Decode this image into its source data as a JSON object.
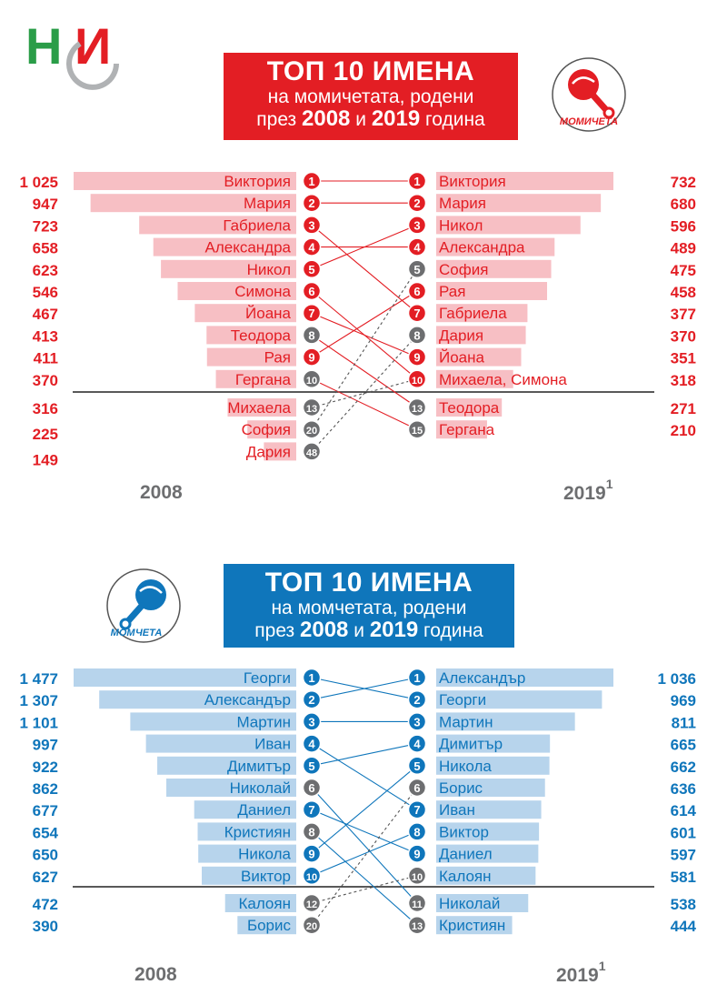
{
  "logo": {
    "text": "НСИ"
  },
  "girls": {
    "title_line1": "ТОП 10 ИМЕНА",
    "title_line2": "на момичетата, родени",
    "title_line3_a": "през ",
    "title_year_a": "2008",
    "title_line3_b": " и ",
    "title_year_b": "2019",
    "title_line3_c": " година",
    "badge": "МОМИЧЕТА",
    "year_left": "2008",
    "year_right": "2019",
    "year_right_sup": "1",
    "color": "#e31e24",
    "bar_color": "#f7bfc4",
    "left": [
      {
        "rank": "1",
        "name": "Виктория",
        "value": 1025,
        "value_label": "1 025",
        "target": 1
      },
      {
        "rank": "2",
        "name": "Мария",
        "value": 947,
        "value_label": "947",
        "target": 2
      },
      {
        "rank": "3",
        "name": "Габриела",
        "value": 723,
        "value_label": "723",
        "target": 7
      },
      {
        "rank": "4",
        "name": "Александра",
        "value": 658,
        "value_label": "658",
        "target": 4
      },
      {
        "rank": "5",
        "name": "Никол",
        "value": 623,
        "value_label": "623",
        "target": 3
      },
      {
        "rank": "6",
        "name": "Симона",
        "value": 546,
        "value_label": "546",
        "target": 10
      },
      {
        "rank": "7",
        "name": "Йоана",
        "value": 467,
        "value_label": "467",
        "target": 9
      },
      {
        "rank": "8",
        "name": "Теодора",
        "value": 413,
        "value_label": "413",
        "target": 11
      },
      {
        "rank": "9",
        "name": "Рая",
        "value": 411,
        "value_label": "411",
        "target": 6
      },
      {
        "rank": "10",
        "name": "Гергана",
        "value": 370,
        "value_label": "370",
        "target": 12
      },
      {
        "rank": "13",
        "name": "Михаела",
        "value": 316,
        "value_label": "316",
        "target": 10
      },
      {
        "rank": "20",
        "name": "София",
        "value": 225,
        "value_label": "225",
        "target": 5
      },
      {
        "rank": "48",
        "name": "Дария",
        "value": 149,
        "value_label": "149",
        "target": 8
      }
    ],
    "right": [
      {
        "rank": "1",
        "name": "Виктория",
        "value": 732,
        "value_label": "732"
      },
      {
        "rank": "2",
        "name": "Мария",
        "value": 680,
        "value_label": "680"
      },
      {
        "rank": "3",
        "name": "Никол",
        "value": 596,
        "value_label": "596"
      },
      {
        "rank": "4",
        "name": "Александра",
        "value": 489,
        "value_label": "489"
      },
      {
        "rank": "5",
        "name": "София",
        "value": 475,
        "value_label": "475"
      },
      {
        "rank": "6",
        "name": "Рая",
        "value": 458,
        "value_label": "458"
      },
      {
        "rank": "7",
        "name": "Габриела",
        "value": 377,
        "value_label": "377"
      },
      {
        "rank": "8",
        "name": "Дария",
        "value": 370,
        "value_label": "370"
      },
      {
        "rank": "9",
        "name": "Йоана",
        "value": 351,
        "value_label": "351"
      },
      {
        "rank": "10",
        "name": "Михаела, Симона",
        "value": 318,
        "value_label": "318"
      },
      {
        "rank": "13",
        "name": "Теодора",
        "value": 271,
        "value_label": "271"
      },
      {
        "rank": "15",
        "name": "Гергана",
        "value": 210,
        "value_label": "210"
      }
    ]
  },
  "boys": {
    "title_line1": "ТОП 10 ИМЕНА",
    "title_line2": "на момчетата, родени",
    "title_line3_a": "през ",
    "title_year_a": "2008",
    "title_line3_b": " и ",
    "title_year_b": "2019",
    "title_line3_c": " година",
    "badge": "МОМЧЕТА",
    "year_left": "2008",
    "year_right": "2019",
    "year_right_sup": "1",
    "color": "#0f76bb",
    "bar_color": "#b7d4ec",
    "left": [
      {
        "rank": "1",
        "name": "Георги",
        "value": 1477,
        "value_label": "1 477",
        "target": 2
      },
      {
        "rank": "2",
        "name": "Александър",
        "value": 1307,
        "value_label": "1 307",
        "target": 1
      },
      {
        "rank": "3",
        "name": "Мартин",
        "value": 1101,
        "value_label": "1 101",
        "target": 3
      },
      {
        "rank": "4",
        "name": "Иван",
        "value": 997,
        "value_label": "997",
        "target": 7
      },
      {
        "rank": "5",
        "name": "Димитър",
        "value": 922,
        "value_label": "922",
        "target": 4
      },
      {
        "rank": "6",
        "name": "Николай",
        "value": 862,
        "value_label": "862",
        "target": 11
      },
      {
        "rank": "7",
        "name": "Даниел",
        "value": 677,
        "value_label": "677",
        "target": 9
      },
      {
        "rank": "8",
        "name": "Кристиян",
        "value": 654,
        "value_label": "654",
        "target": 12
      },
      {
        "rank": "9",
        "name": "Никола",
        "value": 650,
        "value_label": "650",
        "target": 5
      },
      {
        "rank": "10",
        "name": "Виктор",
        "value": 627,
        "value_label": "627",
        "target": 8
      },
      {
        "rank": "12",
        "name": "Калоян",
        "value": 472,
        "value_label": "472",
        "target": 10
      },
      {
        "rank": "20",
        "name": "Борис",
        "value": 390,
        "value_label": "390",
        "target": 6
      }
    ],
    "right": [
      {
        "rank": "1",
        "name": "Александър",
        "value": 1036,
        "value_label": "1 036"
      },
      {
        "rank": "2",
        "name": "Георги",
        "value": 969,
        "value_label": "969"
      },
      {
        "rank": "3",
        "name": "Мартин",
        "value": 811,
        "value_label": "811"
      },
      {
        "rank": "4",
        "name": "Димитър",
        "value": 665,
        "value_label": "665"
      },
      {
        "rank": "5",
        "name": "Никола",
        "value": 662,
        "value_label": "662"
      },
      {
        "rank": "6",
        "name": "Борис",
        "value": 636,
        "value_label": "636"
      },
      {
        "rank": "7",
        "name": "Иван",
        "value": 614,
        "value_label": "614"
      },
      {
        "rank": "8",
        "name": "Виктор",
        "value": 601,
        "value_label": "601"
      },
      {
        "rank": "9",
        "name": "Даниел",
        "value": 597,
        "value_label": "597"
      },
      {
        "rank": "10",
        "name": "Калоян",
        "value": 581,
        "value_label": "581"
      },
      {
        "rank": "11",
        "name": "Николай",
        "value": 538,
        "value_label": "538"
      },
      {
        "rank": "13",
        "name": "Кристиян",
        "value": 444,
        "value_label": "444"
      }
    ]
  },
  "chart_data": [
    {
      "type": "bar",
      "title": "ТОП 10 ИМЕНА на момичетата, родени през 2008 и 2019 година",
      "series": [
        {
          "name": "2008",
          "categories": [
            "Виктория",
            "Мария",
            "Габриела",
            "Александра",
            "Никол",
            "Симона",
            "Йоана",
            "Теодора",
            "Рая",
            "Гергана",
            "Михаела",
            "София",
            "Дария"
          ],
          "values": [
            1025,
            947,
            723,
            658,
            623,
            546,
            467,
            413,
            411,
            370,
            316,
            225,
            149
          ]
        },
        {
          "name": "2019",
          "categories": [
            "Виктория",
            "Мария",
            "Никол",
            "Александра",
            "София",
            "Рая",
            "Габриела",
            "Дария",
            "Йоана",
            "Михаела, Симона",
            "Теодора",
            "Гергана"
          ],
          "values": [
            732,
            680,
            596,
            489,
            475,
            458,
            377,
            370,
            351,
            318,
            271,
            210
          ]
        }
      ]
    },
    {
      "type": "bar",
      "title": "ТОП 10 ИМЕНА на момчетата, родени през 2008 и 2019 година",
      "series": [
        {
          "name": "2008",
          "categories": [
            "Георги",
            "Александър",
            "Мартин",
            "Иван",
            "Димитър",
            "Николай",
            "Даниел",
            "Кристиян",
            "Никола",
            "Виктор",
            "Калоян",
            "Борис"
          ],
          "values": [
            1477,
            1307,
            1101,
            997,
            922,
            862,
            677,
            654,
            650,
            627,
            472,
            390
          ]
        },
        {
          "name": "2019",
          "categories": [
            "Александър",
            "Георги",
            "Мартин",
            "Димитър",
            "Никола",
            "Борис",
            "Иван",
            "Виктор",
            "Даниел",
            "Калоян",
            "Николай",
            "Кристиян"
          ],
          "values": [
            1036,
            969,
            811,
            665,
            662,
            636,
            614,
            601,
            597,
            581,
            538,
            444
          ]
        }
      ]
    }
  ]
}
